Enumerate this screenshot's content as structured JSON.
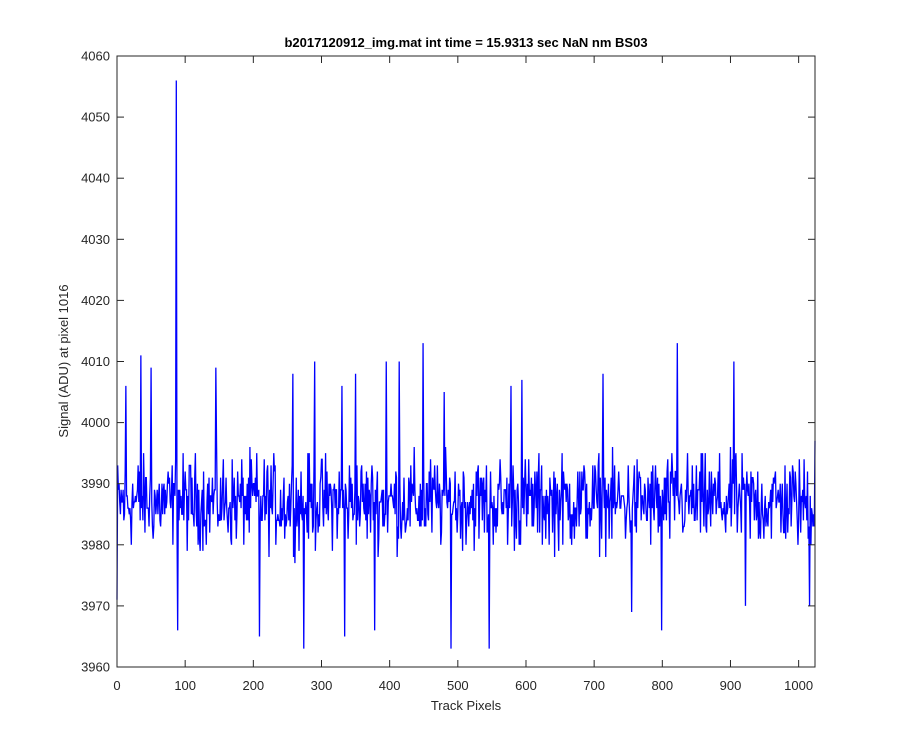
{
  "chart_data": {
    "type": "line",
    "title": "b2017120912_img.mat int time = 15.9313 sec  NaN nm BS03",
    "xlabel": "Track Pixels",
    "ylabel": "Signal (ADU) at pixel 1016",
    "xlim": [
      0,
      1024
    ],
    "ylim": [
      3960,
      4060
    ],
    "xticks": [
      0,
      100,
      200,
      300,
      400,
      500,
      600,
      700,
      800,
      900,
      1000
    ],
    "yticks": [
      3960,
      3970,
      3980,
      3990,
      4000,
      4010,
      4020,
      4030,
      4040,
      4050,
      4060
    ],
    "grid": false,
    "legend": "none",
    "series": [
      {
        "color": "#0000ff",
        "baseline": 3987,
        "noise_amplitude": 10,
        "notable_points": [
          {
            "x": 0,
            "y": 3971
          },
          {
            "x": 13,
            "y": 4006
          },
          {
            "x": 35,
            "y": 4011
          },
          {
            "x": 50,
            "y": 4009
          },
          {
            "x": 87,
            "y": 4056
          },
          {
            "x": 89,
            "y": 3966
          },
          {
            "x": 145,
            "y": 4009
          },
          {
            "x": 209,
            "y": 3965
          },
          {
            "x": 258,
            "y": 4008
          },
          {
            "x": 274,
            "y": 3963
          },
          {
            "x": 290,
            "y": 4010
          },
          {
            "x": 330,
            "y": 4006
          },
          {
            "x": 334,
            "y": 3965
          },
          {
            "x": 350,
            "y": 4008
          },
          {
            "x": 378,
            "y": 3966
          },
          {
            "x": 395,
            "y": 4010
          },
          {
            "x": 414,
            "y": 4010
          },
          {
            "x": 449,
            "y": 4013
          },
          {
            "x": 480,
            "y": 4005
          },
          {
            "x": 490,
            "y": 3963
          },
          {
            "x": 546,
            "y": 3963
          },
          {
            "x": 578,
            "y": 4006
          },
          {
            "x": 594,
            "y": 4007
          },
          {
            "x": 713,
            "y": 4008
          },
          {
            "x": 755,
            "y": 3969
          },
          {
            "x": 799,
            "y": 3966
          },
          {
            "x": 822,
            "y": 4013
          },
          {
            "x": 905,
            "y": 4010
          },
          {
            "x": 922,
            "y": 3970
          },
          {
            "x": 1016,
            "y": 3970
          },
          {
            "x": 1024,
            "y": 3997
          }
        ]
      }
    ]
  }
}
